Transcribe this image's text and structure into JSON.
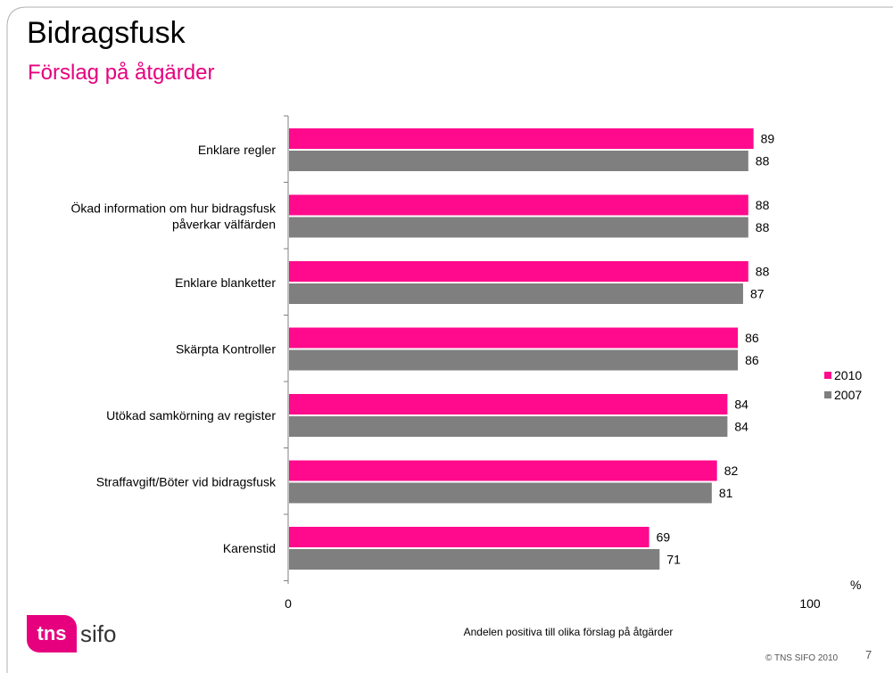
{
  "title": "Bidragsfusk",
  "subtitle": "Förslag på åtgärder",
  "chart_data": {
    "type": "bar",
    "orientation": "horizontal",
    "categories": [
      "Enklare regler",
      "Ökad information om hur bidragsfusk påverkar välfärden",
      "Enklare blanketter",
      "Skärpta Kontroller",
      "Utökad samkörning av register",
      "Straffavgift/Böter vid bidragsfusk",
      "Karenstid"
    ],
    "category_lines": [
      [
        "Enklare regler"
      ],
      [
        "Ökad information om hur bidragsfusk",
        "påverkar välfärden"
      ],
      [
        "Enklare blanketter"
      ],
      [
        "Skärpta Kontroller"
      ],
      [
        "Utökad samkörning av register"
      ],
      [
        "Straffavgift/Böter vid bidragsfusk"
      ],
      [
        "Karenstid"
      ]
    ],
    "series": [
      {
        "name": "2010",
        "color": "#ff0a8c",
        "values": [
          89,
          88,
          88,
          86,
          84,
          82,
          69
        ]
      },
      {
        "name": "2007",
        "color": "#7f7f7f",
        "values": [
          88,
          88,
          87,
          86,
          84,
          81,
          71
        ]
      }
    ],
    "xlim": [
      0,
      100
    ],
    "xticks": [
      "0",
      "100"
    ],
    "unit": "%",
    "xlabel": "Andelen positiva till olika förslag på åtgärder",
    "grid": false,
    "legend_position": "right"
  },
  "logo": {
    "part1": "tns",
    "part2": "sifo"
  },
  "footer": {
    "copyright": "© TNS SIFO 2010",
    "page_number": "7"
  },
  "colors": {
    "accent": "#e6007e",
    "title": "#000000",
    "frame": "#b0b0b0"
  }
}
